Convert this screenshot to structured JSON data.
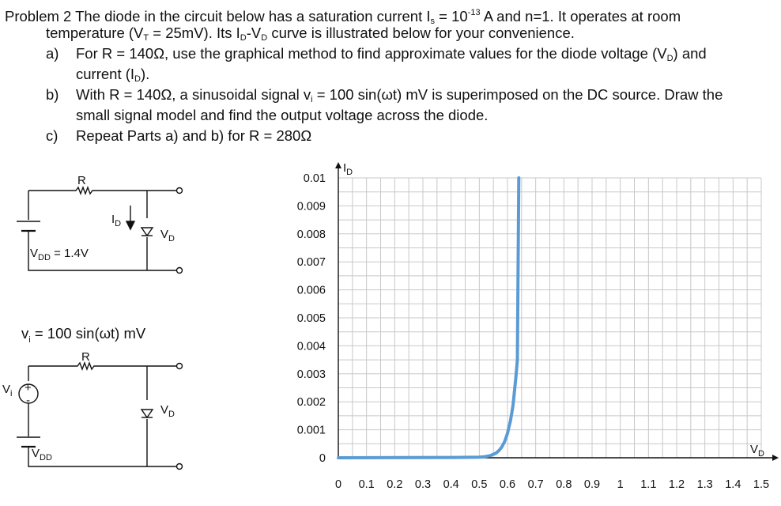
{
  "problem": {
    "line1": {
      "pre": "Problem 2  The diode in the circuit below has a saturation current I",
      "is_sub": "s",
      "mid": " = 10",
      "exp": "-13",
      "post": " A and n=1.   It operates at room"
    },
    "line2": {
      "pre": "temperature (V",
      "vt_sub": "T",
      "mid": " = 25mV).  Its I",
      "id_sub": "D",
      "dash": "-V",
      "vd_sub": "D",
      "post": " curve is illustrated below for your convenience."
    },
    "part_a": {
      "letter": "a)",
      "l1_pre": "For R = 140Ω, use the graphical method to find approximate values for the diode voltage (V",
      "l1_sub": "D",
      "l1_post": ") and",
      "l2_pre": "current (I",
      "l2_sub": "D",
      "l2_post": ")."
    },
    "part_b": {
      "letter": "b)",
      "l1_pre": "With R = 140Ω, a sinusoidal signal v",
      "l1_sub": "i",
      "l1_post": " = 100 sin(ωt) mV  is superimposed on the DC source.  Draw the",
      "l2": "small signal model and find the output voltage across the diode."
    },
    "part_c": {
      "letter": "c)",
      "text": "Repeat Parts a) and b) for R = 280Ω"
    }
  },
  "circuit1": {
    "r_label": "R",
    "id_label": "I",
    "id_sub": "D",
    "vd_label": "V",
    "vd_sub": "D",
    "vdd_label": "V",
    "vdd_sub": "DD",
    "vdd_value": " = 1.4V"
  },
  "circuit2": {
    "vi_title_pre": "v",
    "vi_title_sub": "i",
    "vi_title_post": " = 100 sin(ωt) mV",
    "r_label": "R",
    "vi_label": "V",
    "vi_sub": "i",
    "plus": "+",
    "minus": "-",
    "vd_label": "V",
    "vd_sub": "D",
    "vdd_label": "V",
    "vdd_sub": "DD"
  },
  "chart_data": {
    "type": "line",
    "title": "",
    "xlabel": "V",
    "xlabel_sub": "D",
    "ylabel": "I",
    "ylabel_sub": "D",
    "x_ticks": [
      "0",
      "0.1",
      "0.2",
      "0.3",
      "0.4",
      "0.5",
      "0.6",
      "0.7",
      "0.8",
      "0.9",
      "1",
      "1.1",
      "1.2",
      "1.3",
      "1.4",
      "1.5"
    ],
    "y_ticks": [
      "0",
      "0.001",
      "0.002",
      "0.003",
      "0.004",
      "0.005",
      "0.006",
      "0.007",
      "0.008",
      "0.009",
      "0.01"
    ],
    "xlim": [
      0,
      1.5
    ],
    "ylim": [
      0,
      0.01
    ],
    "grid": true,
    "series": [
      {
        "color": "#5b9bd5",
        "x": [
          0,
          0.4,
          0.5,
          0.52,
          0.54,
          0.56,
          0.57,
          0.58,
          0.59,
          0.6,
          0.605,
          0.61,
          0.615,
          0.62,
          0.625,
          0.63,
          0.635,
          0.64
        ],
        "y": [
          0,
          1e-05,
          2e-05,
          4e-05,
          8e-05,
          0.00017,
          0.00026,
          0.00039,
          0.00058,
          0.00087,
          0.0011,
          0.0013,
          0.0016,
          0.0019,
          0.0024,
          0.0029,
          0.0035,
          0.01
        ]
      }
    ]
  }
}
